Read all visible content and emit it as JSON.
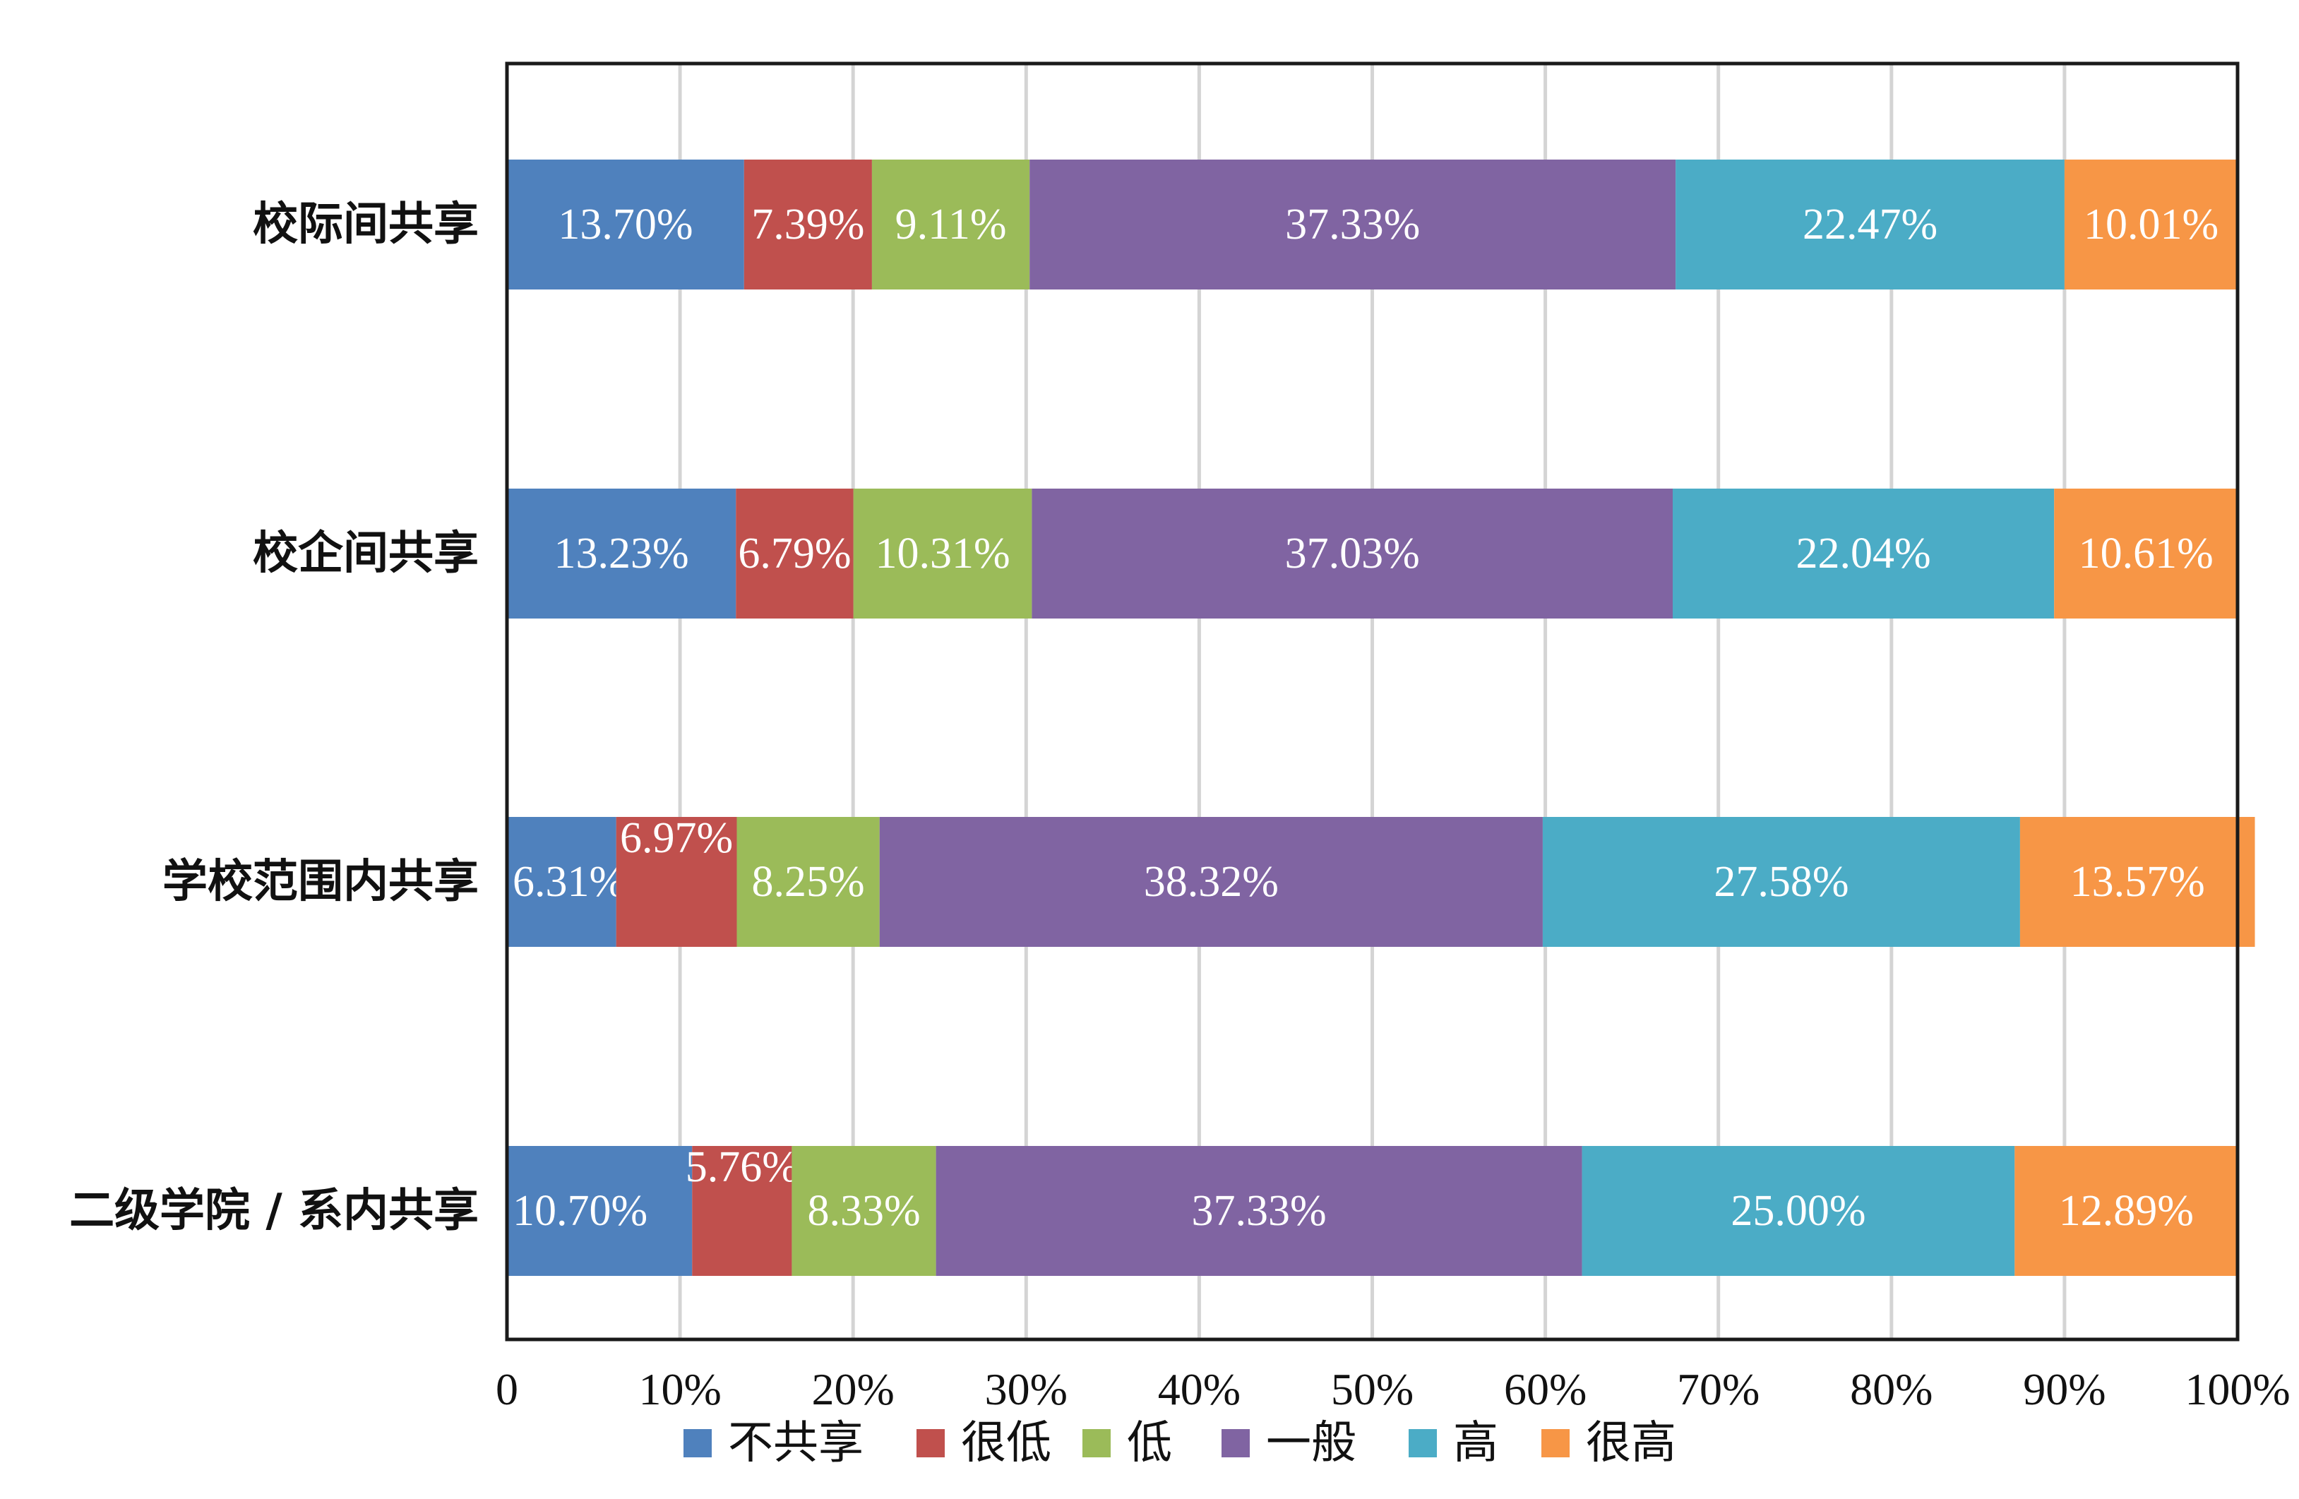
{
  "chart_data": {
    "type": "bar",
    "orientation": "horizontal",
    "stacked": "percent",
    "categories": [
      "校际间共享",
      "校企间共享",
      "学校范围内共享",
      "二级学院 / 系内共享"
    ],
    "series": [
      {
        "name": "不共享",
        "color": "#4F81BD",
        "values": [
          13.7,
          13.23,
          6.31,
          10.7
        ],
        "labels": [
          "13.70%",
          "13.23%",
          "6.31%",
          "10.70%"
        ]
      },
      {
        "name": "很低",
        "color": "#C0504D",
        "values": [
          7.39,
          6.79,
          6.97,
          5.76
        ],
        "labels": [
          "7.39%",
          "6.79%",
          "6.97%",
          "5.76%"
        ]
      },
      {
        "name": "低",
        "color": "#9BBB59",
        "values": [
          9.11,
          10.31,
          8.25,
          8.33
        ],
        "labels": [
          "9.11%",
          "10.31%",
          "8.25%",
          "8.33%"
        ]
      },
      {
        "name": "一般",
        "color": "#8064A2",
        "values": [
          37.33,
          37.03,
          38.32,
          37.33
        ],
        "labels": [
          "37.33%",
          "37.03%",
          "38.32%",
          "37.33%"
        ]
      },
      {
        "name": "高",
        "color": "#4BACC6",
        "values": [
          22.47,
          22.04,
          27.58,
          25.0
        ],
        "labels": [
          "22.47%",
          "22.04%",
          "27.58%",
          "25.00%"
        ]
      },
      {
        "name": "很高",
        "color": "#F79646",
        "values": [
          10.01,
          10.61,
          13.57,
          12.89
        ],
        "labels": [
          "10.01%",
          "10.61%",
          "13.57%",
          "12.89%"
        ]
      }
    ],
    "xlim": [
      0,
      100
    ],
    "xticks": [
      "0",
      "10%",
      "20%",
      "30%",
      "40%",
      "50%",
      "60%",
      "70%",
      "80%",
      "90%",
      "100%"
    ],
    "grid": true,
    "legend_position": "bottom",
    "title": "",
    "xlabel": "",
    "ylabel": ""
  }
}
